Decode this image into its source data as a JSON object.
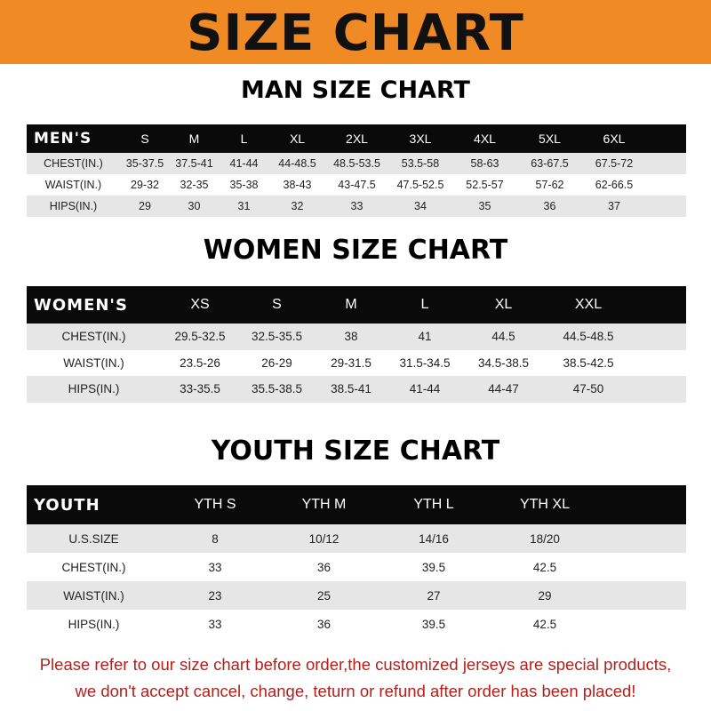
{
  "header": {
    "title": "SIZE CHART",
    "color": "#f08a24"
  },
  "men": {
    "title": "MAN SIZE CHART",
    "label": "MEN'S",
    "sizes": [
      "S",
      "M",
      "L",
      "XL",
      "2XL",
      "3XL",
      "4XL",
      "5XL",
      "6XL"
    ],
    "rows": [
      {
        "label": "CHEST(IN.)",
        "values": [
          "35-37.5",
          "37.5-41",
          "41-44",
          "44-48.5",
          "48.5-53.5",
          "53.5-58",
          "58-63",
          "63-67.5",
          "67.5-72"
        ]
      },
      {
        "label": "WAIST(IN.)",
        "values": [
          "29-32",
          "32-35",
          "35-38",
          "38-43",
          "43-47.5",
          "47.5-52.5",
          "52.5-57",
          "57-62",
          "62-66.5"
        ]
      },
      {
        "label": "HIPS(IN.)",
        "values": [
          "29",
          "30",
          "31",
          "32",
          "33",
          "34",
          "35",
          "36",
          "37"
        ]
      }
    ]
  },
  "women": {
    "title": "WOMEN SIZE CHART",
    "label": "WOMEN'S",
    "sizes": [
      "XS",
      "S",
      "M",
      "L",
      "XL",
      "XXL"
    ],
    "rows": [
      {
        "label": "CHEST(IN.)",
        "values": [
          "29.5-32.5",
          "32.5-35.5",
          "38",
          "41",
          "44.5",
          "44.5-48.5"
        ]
      },
      {
        "label": "WAIST(IN.)",
        "values": [
          "23.5-26",
          "26-29",
          "29-31.5",
          "31.5-34.5",
          "34.5-38.5",
          "38.5-42.5"
        ]
      },
      {
        "label": "HIPS(IN.)",
        "values": [
          "33-35.5",
          "35.5-38.5",
          "38.5-41",
          "41-44",
          "44-47",
          "47-50"
        ]
      }
    ]
  },
  "youth": {
    "title": "YOUTH SIZE CHART",
    "label": "YOUTH",
    "sizes": [
      "YTH S",
      "YTH M",
      "YTH L",
      "YTH XL"
    ],
    "rows": [
      {
        "label": "U.S.SIZE",
        "values": [
          "8",
          "10/12",
          "14/16",
          "18/20"
        ]
      },
      {
        "label": "CHEST(IN.)",
        "values": [
          "33",
          "36",
          "39.5",
          "42.5"
        ]
      },
      {
        "label": "WAIST(IN.)",
        "values": [
          "23",
          "25",
          "27",
          "29"
        ]
      },
      {
        "label": "HIPS(IN.)",
        "values": [
          "33",
          "36",
          "39.5",
          "42.5"
        ]
      }
    ]
  },
  "notice": {
    "line1": "Please refer to our size chart before order,the customized jerseys are special products,",
    "line2": "we don't accept cancel, change, teturn or refund after order has been placed!",
    "color": "#b3201c"
  }
}
